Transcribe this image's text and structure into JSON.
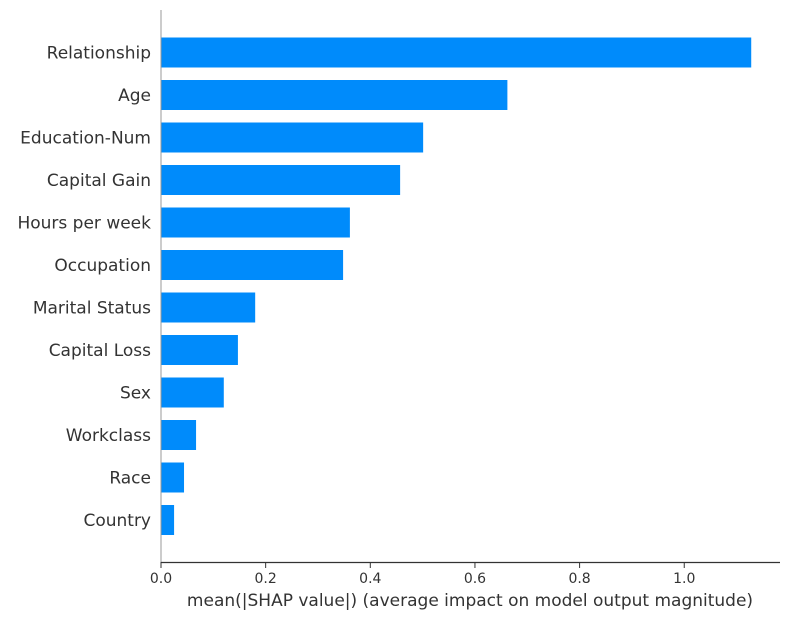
{
  "chart_data": {
    "type": "bar",
    "orientation": "horizontal",
    "categories": [
      "Relationship",
      "Age",
      "Education-Num",
      "Capital Gain",
      "Hours per week",
      "Occupation",
      "Marital Status",
      "Capital Loss",
      "Sex",
      "Workclass",
      "Race",
      "Country"
    ],
    "values": [
      1.128,
      0.662,
      0.501,
      0.457,
      0.361,
      0.348,
      0.18,
      0.147,
      0.12,
      0.067,
      0.044,
      0.025
    ],
    "title": "",
    "xlabel": "mean(|SHAP value|) (average impact on model output magnitude)",
    "ylabel": "",
    "xlim": [
      0,
      1.183
    ],
    "xticks": [
      0.0,
      0.2,
      0.4,
      0.6,
      0.8,
      1.0
    ],
    "xtick_labels": [
      "0.0",
      "0.2",
      "0.4",
      "0.6",
      "0.8",
      "1.0"
    ],
    "grid": false,
    "bar_color": "#008bfb",
    "text_color": "#333333"
  }
}
